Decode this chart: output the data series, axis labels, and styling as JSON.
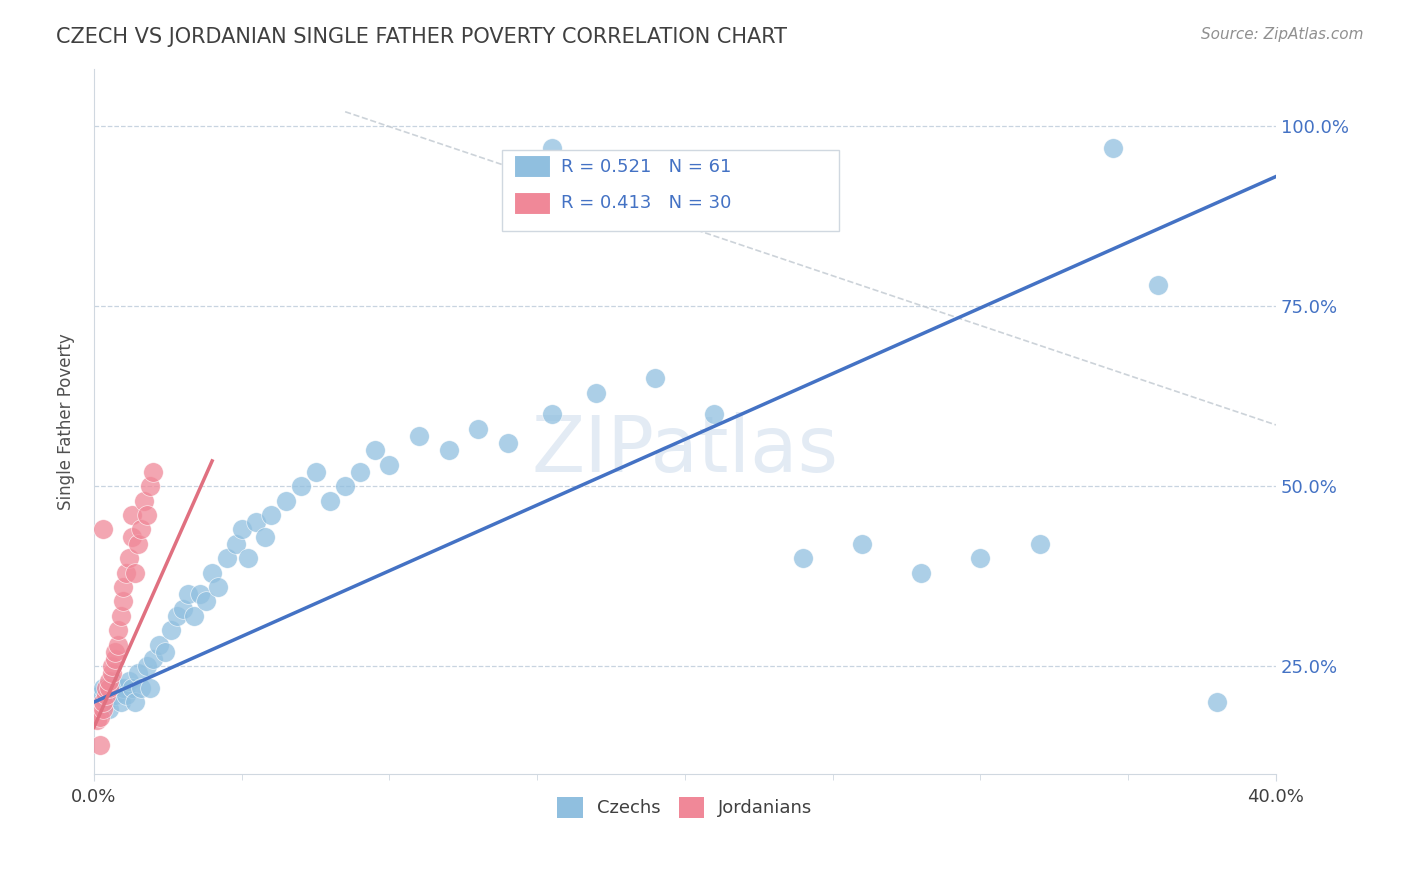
{
  "title": "CZECH VS JORDANIAN SINGLE FATHER POVERTY CORRELATION CHART",
  "source": "Source: ZipAtlas.com",
  "ylabel": "Single Father Poverty",
  "yticks": [
    "25.0%",
    "50.0%",
    "75.0%",
    "100.0%"
  ],
  "ytick_vals": [
    0.25,
    0.5,
    0.75,
    1.0
  ],
  "xrange": [
    0.0,
    0.4
  ],
  "yrange": [
    0.1,
    1.08
  ],
  "watermark": "ZIPatlas",
  "czech_color": "#90bfdf",
  "jordan_color": "#f08898",
  "czech_line_color": "#4472c4",
  "jordan_line_color": "#e07080",
  "background_color": "#ffffff",
  "grid_color": "#c8d4e0",
  "title_color": "#404040",
  "czech_R": 0.521,
  "czech_N": 61,
  "jordan_R": 0.413,
  "jordan_N": 30,
  "czech_line": {
    "x0": 0.0,
    "y0": 0.2,
    "x1": 0.4,
    "y1": 0.93
  },
  "jordan_line": {
    "x0": 0.0,
    "y0": 0.165,
    "x1": 0.04,
    "y1": 0.535
  },
  "diag_line": {
    "x0": 0.085,
    "y0": 1.02,
    "x1": 0.4,
    "y1": 0.585
  },
  "czech_points": [
    [
      0.002,
      0.21
    ],
    [
      0.003,
      0.22
    ],
    [
      0.004,
      0.2
    ],
    [
      0.005,
      0.19
    ],
    [
      0.006,
      0.23
    ],
    [
      0.007,
      0.21
    ],
    [
      0.008,
      0.22
    ],
    [
      0.009,
      0.2
    ],
    [
      0.01,
      0.22
    ],
    [
      0.011,
      0.21
    ],
    [
      0.012,
      0.23
    ],
    [
      0.013,
      0.22
    ],
    [
      0.014,
      0.2
    ],
    [
      0.015,
      0.24
    ],
    [
      0.016,
      0.22
    ],
    [
      0.018,
      0.25
    ],
    [
      0.019,
      0.22
    ],
    [
      0.02,
      0.26
    ],
    [
      0.022,
      0.28
    ],
    [
      0.024,
      0.27
    ],
    [
      0.026,
      0.3
    ],
    [
      0.028,
      0.32
    ],
    [
      0.03,
      0.33
    ],
    [
      0.032,
      0.35
    ],
    [
      0.034,
      0.32
    ],
    [
      0.036,
      0.35
    ],
    [
      0.038,
      0.34
    ],
    [
      0.04,
      0.38
    ],
    [
      0.042,
      0.36
    ],
    [
      0.045,
      0.4
    ],
    [
      0.048,
      0.42
    ],
    [
      0.05,
      0.44
    ],
    [
      0.052,
      0.4
    ],
    [
      0.055,
      0.45
    ],
    [
      0.058,
      0.43
    ],
    [
      0.06,
      0.46
    ],
    [
      0.065,
      0.48
    ],
    [
      0.07,
      0.5
    ],
    [
      0.075,
      0.52
    ],
    [
      0.08,
      0.48
    ],
    [
      0.085,
      0.5
    ],
    [
      0.09,
      0.52
    ],
    [
      0.095,
      0.55
    ],
    [
      0.1,
      0.53
    ],
    [
      0.11,
      0.57
    ],
    [
      0.12,
      0.55
    ],
    [
      0.13,
      0.58
    ],
    [
      0.14,
      0.56
    ],
    [
      0.155,
      0.6
    ],
    [
      0.17,
      0.63
    ],
    [
      0.19,
      0.65
    ],
    [
      0.21,
      0.6
    ],
    [
      0.24,
      0.4
    ],
    [
      0.26,
      0.42
    ],
    [
      0.28,
      0.38
    ],
    [
      0.3,
      0.4
    ],
    [
      0.32,
      0.42
    ],
    [
      0.345,
      0.97
    ],
    [
      0.36,
      0.78
    ],
    [
      0.38,
      0.2
    ],
    [
      0.155,
      0.97
    ]
  ],
  "jordan_points": [
    [
      0.001,
      0.175
    ],
    [
      0.002,
      0.18
    ],
    [
      0.003,
      0.19
    ],
    [
      0.003,
      0.2
    ],
    [
      0.004,
      0.21
    ],
    [
      0.004,
      0.22
    ],
    [
      0.005,
      0.22
    ],
    [
      0.005,
      0.23
    ],
    [
      0.006,
      0.24
    ],
    [
      0.006,
      0.25
    ],
    [
      0.007,
      0.26
    ],
    [
      0.007,
      0.27
    ],
    [
      0.008,
      0.28
    ],
    [
      0.008,
      0.3
    ],
    [
      0.009,
      0.32
    ],
    [
      0.01,
      0.34
    ],
    [
      0.01,
      0.36
    ],
    [
      0.011,
      0.38
    ],
    [
      0.012,
      0.4
    ],
    [
      0.013,
      0.43
    ],
    [
      0.013,
      0.46
    ],
    [
      0.014,
      0.38
    ],
    [
      0.015,
      0.42
    ],
    [
      0.016,
      0.44
    ],
    [
      0.017,
      0.48
    ],
    [
      0.018,
      0.46
    ],
    [
      0.019,
      0.5
    ],
    [
      0.02,
      0.52
    ],
    [
      0.003,
      0.44
    ],
    [
      0.002,
      0.14
    ]
  ]
}
